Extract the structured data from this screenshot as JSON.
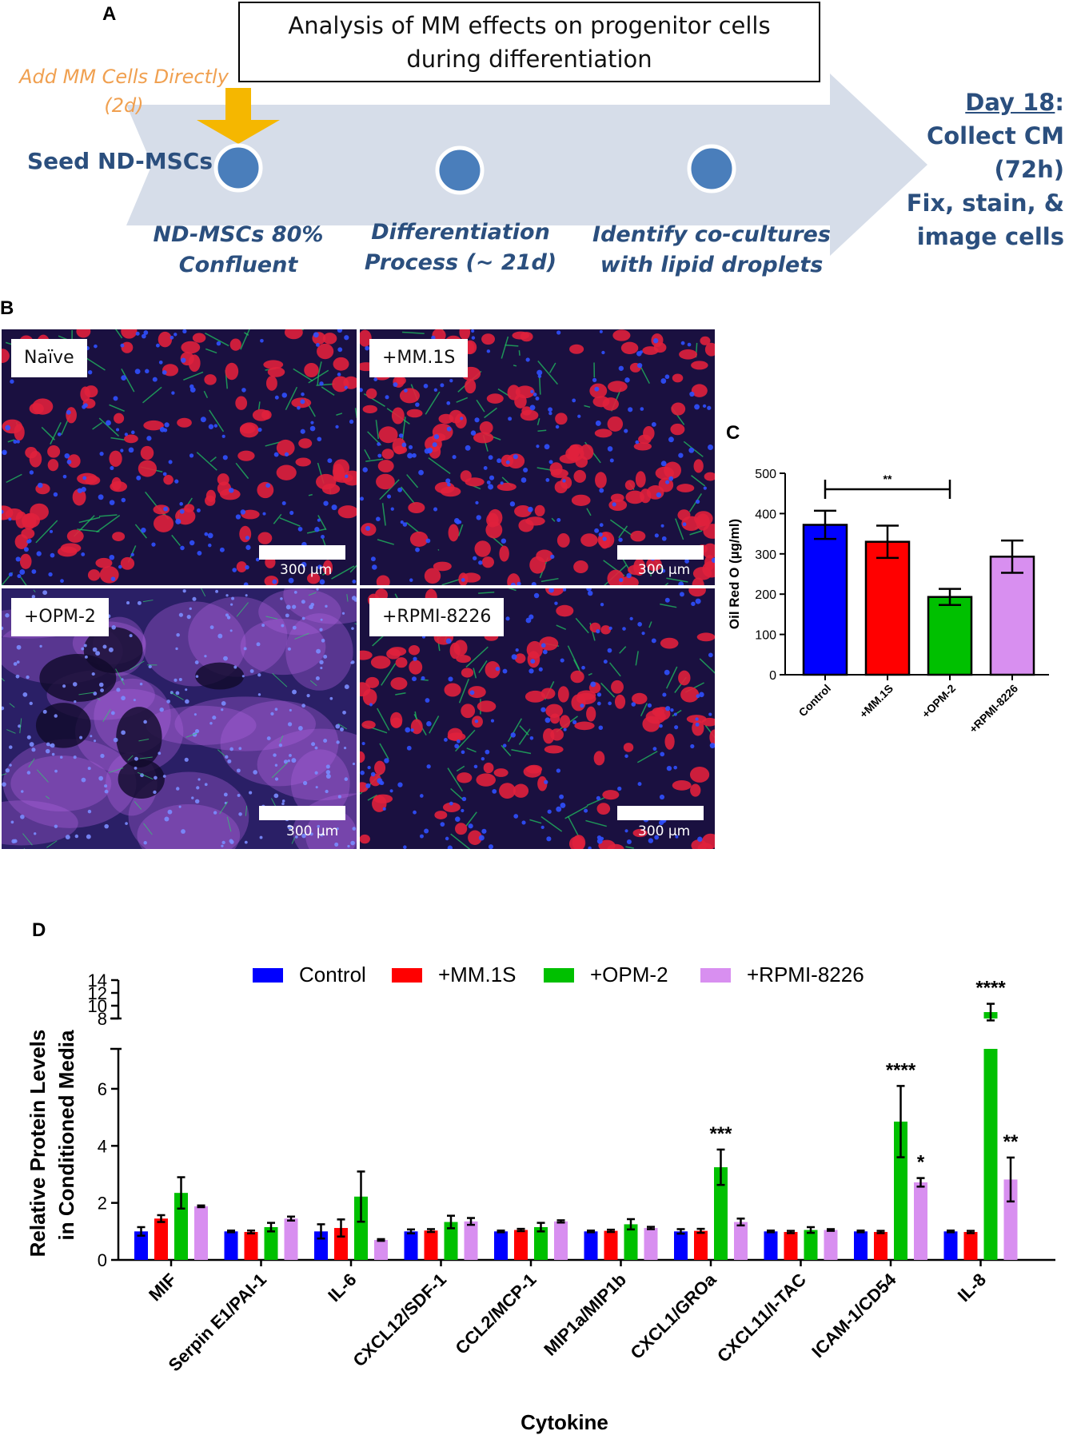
{
  "panel_a": {
    "letter": "A",
    "box_line1": "Analysis of MM effects on progenitor cells",
    "box_line2": "during differentiation",
    "add_mm_line1": "Add MM Cells Directly",
    "add_mm_line2": "(2d)",
    "seed_label": "Seed ND-MSCs",
    "step1_line1": "ND-MSCs 80%",
    "step1_line2": "Confluent",
    "step2_line1": "Differentiation",
    "step2_line2": "Process (~ 21d)",
    "step3_line1": "Identify co-cultures",
    "step3_line2": "with lipid droplets",
    "day_label": "Day 18",
    "day_colon": ":",
    "end_line2": "Collect CM",
    "end_line3": "(72h)",
    "end_line4": "Fix, stain, &",
    "end_line5": "image cells",
    "colors": {
      "arrow": "#d6dde9",
      "text": "#2b4f7e",
      "circle": "#4a7ebb",
      "orange_arrow": "#f5b700",
      "orange_text": "#f0a050"
    }
  },
  "panel_b": {
    "letter": "B",
    "images": [
      {
        "label": "Naïve",
        "scale": "300 µm"
      },
      {
        "label": "+MM.1S",
        "scale": "300 µm"
      },
      {
        "label": "+OPM-2",
        "scale": "300 µm"
      },
      {
        "label": "+RPMI-8226",
        "scale": "300 µm"
      }
    ]
  },
  "panel_c": {
    "letter": "C",
    "significance": "**",
    "chart_data": {
      "type": "bar",
      "categories": [
        "Control",
        "+MM.1S",
        "+OPM-2",
        "+RPMI-8226"
      ],
      "values": [
        372,
        330,
        193,
        293
      ],
      "errors": [
        35,
        40,
        20,
        40
      ],
      "colors": [
        "#0000ff",
        "#ff0000",
        "#00c000",
        "#d88ff0"
      ],
      "ylabel": "Oil Red O (µg/ml)",
      "ylim": [
        0,
        500
      ],
      "yticks": [
        "0",
        "100",
        "200",
        "300",
        "400",
        "500"
      ],
      "comparison": {
        "from": "Control",
        "to": "+OPM-2",
        "label": "**"
      }
    }
  },
  "panel_d": {
    "letter": "D",
    "chart_data": {
      "type": "bar",
      "categories": [
        "MIF",
        "Serpin E1/PAI-1",
        "IL-6",
        "CXCL12/SDF-1",
        "CCL2/MCP-1",
        "MIP1a/MIP1b",
        "CXCL1/GROa",
        "CXCL11/I-TAC",
        "ICAM-1/CD54",
        "IL-8"
      ],
      "series": [
        {
          "name": "Control",
          "color": "#0000ff",
          "values": [
            1.0,
            1.0,
            1.0,
            1.0,
            1.0,
            1.0,
            1.0,
            1.0,
            1.0,
            1.0
          ],
          "errors": [
            0.15,
            0.03,
            0.25,
            0.07,
            0.03,
            0.03,
            0.08,
            0.03,
            0.03,
            0.03
          ],
          "stars": [
            "",
            "",
            "",
            "",
            "",
            "",
            "",
            "",
            "",
            ""
          ]
        },
        {
          "name": "+MM.1S",
          "color": "#ff0000",
          "values": [
            1.45,
            0.98,
            1.12,
            1.03,
            1.05,
            1.02,
            1.02,
            0.98,
            0.98,
            0.98
          ],
          "errors": [
            0.12,
            0.05,
            0.3,
            0.05,
            0.04,
            0.04,
            0.07,
            0.04,
            0.04,
            0.04
          ],
          "stars": [
            "",
            "",
            "",
            "",
            "",
            "",
            "",
            "",
            "",
            ""
          ]
        },
        {
          "name": "+OPM-2",
          "color": "#00c000",
          "values": [
            2.35,
            1.15,
            2.22,
            1.33,
            1.15,
            1.25,
            3.25,
            1.05,
            4.85,
            9.0
          ],
          "errors": [
            0.55,
            0.15,
            0.88,
            0.22,
            0.15,
            0.18,
            0.62,
            0.1,
            1.25,
            1.3
          ],
          "stars": [
            "",
            "",
            "",
            "",
            "",
            "",
            "***",
            "",
            "****",
            "****"
          ]
        },
        {
          "name": "+RPMI-8226",
          "color": "#d88ff0",
          "values": [
            1.88,
            1.45,
            0.7,
            1.35,
            1.35,
            1.12,
            1.33,
            1.05,
            2.72,
            2.82
          ],
          "errors": [
            0.03,
            0.07,
            0.03,
            0.12,
            0.04,
            0.04,
            0.12,
            0.03,
            0.15,
            0.77
          ],
          "stars": [
            "",
            "",
            "",
            "",
            "",
            "",
            "",
            "",
            "*",
            "**"
          ]
        }
      ],
      "xlabel": "Cytokine",
      "ylabel_line1": "Relative Protein Levels",
      "ylabel_line2": "in Conditioned  Media",
      "ylim_lower": [
        0,
        7.4
      ],
      "yticks_lower": [
        "0",
        "2",
        "4",
        "6"
      ],
      "ylim_upper": [
        8,
        14
      ],
      "yticks_upper": [
        "8",
        "10",
        "12",
        "14"
      ],
      "legend_position": "top"
    }
  }
}
